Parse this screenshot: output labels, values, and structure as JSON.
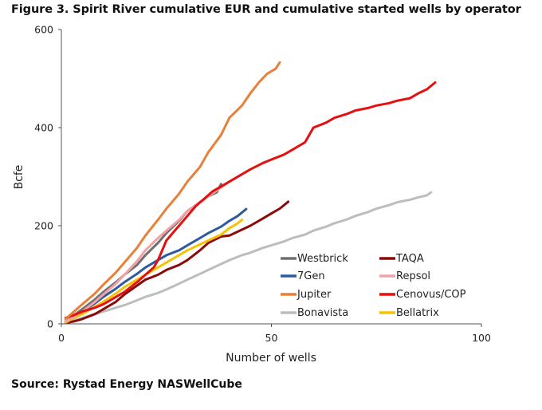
{
  "figure_title": "Figure 3. Spirit River cumulative EUR and cumulative started wells by operator",
  "source": "Source: Rystad Energy NASWellCube",
  "chart_data": {
    "type": "line",
    "title": "Figure 3. Spirit River cumulative EUR and cumulative started wells by operator",
    "xlabel": "Number of wells",
    "ylabel": "Bcfe",
    "xlim": [
      0,
      100
    ],
    "ylim": [
      0,
      600
    ],
    "xticks": [
      "0",
      "50",
      "100"
    ],
    "yticks": [
      "0",
      "200",
      "400",
      "600"
    ],
    "grid": false,
    "legend_position": "bottom-right",
    "series": [
      {
        "name": "Westbrick",
        "color": "#707070",
        "points": [
          [
            1,
            5
          ],
          [
            5,
            30
          ],
          [
            8,
            50
          ],
          [
            10,
            65
          ],
          [
            13,
            85
          ],
          [
            15,
            100
          ],
          [
            18,
            120
          ],
          [
            20,
            140
          ],
          [
            23,
            165
          ],
          [
            25,
            185
          ],
          [
            28,
            210
          ],
          [
            30,
            230
          ],
          [
            33,
            248
          ],
          [
            35,
            260
          ],
          [
            37,
            268
          ],
          [
            38,
            285
          ]
        ]
      },
      {
        "name": "TAQA",
        "color": "#8b0a0a",
        "points": [
          [
            1,
            2
          ],
          [
            3,
            5
          ],
          [
            5,
            10
          ],
          [
            8,
            20
          ],
          [
            10,
            30
          ],
          [
            13,
            45
          ],
          [
            15,
            60
          ],
          [
            18,
            78
          ],
          [
            20,
            90
          ],
          [
            23,
            100
          ],
          [
            25,
            110
          ],
          [
            28,
            120
          ],
          [
            30,
            130
          ],
          [
            33,
            150
          ],
          [
            35,
            165
          ],
          [
            38,
            178
          ],
          [
            40,
            180
          ],
          [
            43,
            192
          ],
          [
            45,
            200
          ],
          [
            48,
            215
          ],
          [
            50,
            225
          ],
          [
            52,
            235
          ],
          [
            54,
            249
          ]
        ]
      },
      {
        "name": "7Gen",
        "color": "#2e5aa0",
        "points": [
          [
            1,
            5
          ],
          [
            3,
            15
          ],
          [
            5,
            25
          ],
          [
            8,
            42
          ],
          [
            10,
            55
          ],
          [
            13,
            72
          ],
          [
            15,
            85
          ],
          [
            18,
            102
          ],
          [
            20,
            115
          ],
          [
            23,
            130
          ],
          [
            25,
            140
          ],
          [
            28,
            150
          ],
          [
            30,
            160
          ],
          [
            33,
            175
          ],
          [
            35,
            185
          ],
          [
            38,
            198
          ],
          [
            40,
            210
          ],
          [
            42,
            220
          ],
          [
            44,
            234
          ]
        ]
      },
      {
        "name": "Repsol",
        "color": "#f2a3a8",
        "points": [
          [
            1,
            5
          ],
          [
            3,
            15
          ],
          [
            5,
            25
          ],
          [
            8,
            45
          ],
          [
            10,
            60
          ],
          [
            13,
            82
          ],
          [
            15,
            100
          ],
          [
            18,
            128
          ],
          [
            20,
            150
          ],
          [
            23,
            175
          ],
          [
            25,
            190
          ],
          [
            28,
            212
          ],
          [
            30,
            230
          ],
          [
            33,
            248
          ],
          [
            35,
            260
          ],
          [
            38,
            278
          ],
          [
            40,
            290
          ],
          [
            43,
            305
          ]
        ]
      },
      {
        "name": "Jupiter",
        "color": "#e8803a",
        "points": [
          [
            1,
            10
          ],
          [
            3,
            25
          ],
          [
            5,
            40
          ],
          [
            8,
            62
          ],
          [
            10,
            80
          ],
          [
            13,
            105
          ],
          [
            15,
            125
          ],
          [
            18,
            155
          ],
          [
            20,
            180
          ],
          [
            23,
            212
          ],
          [
            25,
            235
          ],
          [
            28,
            265
          ],
          [
            30,
            290
          ],
          [
            33,
            320
          ],
          [
            35,
            350
          ],
          [
            38,
            385
          ],
          [
            40,
            420
          ],
          [
            43,
            445
          ],
          [
            45,
            470
          ],
          [
            47,
            492
          ],
          [
            49,
            510
          ],
          [
            51,
            520
          ],
          [
            52,
            533
          ]
        ]
      },
      {
        "name": "Cenovus/COP",
        "color": "#e51010",
        "points": [
          [
            1,
            12
          ],
          [
            3,
            18
          ],
          [
            5,
            25
          ],
          [
            8,
            33
          ],
          [
            10,
            40
          ],
          [
            13,
            55
          ],
          [
            15,
            65
          ],
          [
            18,
            85
          ],
          [
            20,
            100
          ],
          [
            22,
            115
          ],
          [
            23,
            130
          ],
          [
            24,
            150
          ],
          [
            25,
            170
          ],
          [
            27,
            190
          ],
          [
            28,
            200
          ],
          [
            30,
            220
          ],
          [
            32,
            240
          ],
          [
            34,
            255
          ],
          [
            36,
            270
          ],
          [
            38,
            280
          ],
          [
            40,
            290
          ],
          [
            43,
            305
          ],
          [
            45,
            315
          ],
          [
            48,
            328
          ],
          [
            50,
            335
          ],
          [
            53,
            345
          ],
          [
            55,
            355
          ],
          [
            58,
            370
          ],
          [
            60,
            400
          ],
          [
            63,
            410
          ],
          [
            65,
            420
          ],
          [
            68,
            428
          ],
          [
            70,
            435
          ],
          [
            73,
            440
          ],
          [
            75,
            445
          ],
          [
            78,
            450
          ],
          [
            80,
            455
          ],
          [
            83,
            460
          ],
          [
            85,
            470
          ],
          [
            87,
            478
          ],
          [
            89,
            492
          ]
        ]
      },
      {
        "name": "Bonavista",
        "color": "#bdbdbd",
        "points": [
          [
            1,
            2
          ],
          [
            3,
            7
          ],
          [
            5,
            12
          ],
          [
            8,
            20
          ],
          [
            10,
            25
          ],
          [
            13,
            33
          ],
          [
            15,
            38
          ],
          [
            18,
            48
          ],
          [
            20,
            55
          ],
          [
            23,
            63
          ],
          [
            25,
            70
          ],
          [
            28,
            82
          ],
          [
            30,
            90
          ],
          [
            33,
            102
          ],
          [
            35,
            110
          ],
          [
            38,
            122
          ],
          [
            40,
            130
          ],
          [
            43,
            140
          ],
          [
            45,
            145
          ],
          [
            48,
            155
          ],
          [
            50,
            160
          ],
          [
            53,
            168
          ],
          [
            55,
            175
          ],
          [
            58,
            182
          ],
          [
            60,
            190
          ],
          [
            63,
            198
          ],
          [
            65,
            205
          ],
          [
            68,
            213
          ],
          [
            70,
            220
          ],
          [
            73,
            228
          ],
          [
            75,
            235
          ],
          [
            78,
            242
          ],
          [
            80,
            248
          ],
          [
            83,
            253
          ],
          [
            85,
            258
          ],
          [
            87,
            262
          ],
          [
            88,
            268
          ]
        ]
      },
      {
        "name": "Bellatrix",
        "color": "#f5c400",
        "points": [
          [
            1,
            3
          ],
          [
            3,
            12
          ],
          [
            5,
            20
          ],
          [
            8,
            35
          ],
          [
            10,
            45
          ],
          [
            13,
            62
          ],
          [
            15,
            75
          ],
          [
            18,
            90
          ],
          [
            20,
            100
          ],
          [
            23,
            115
          ],
          [
            25,
            125
          ],
          [
            28,
            140
          ],
          [
            30,
            150
          ],
          [
            33,
            162
          ],
          [
            35,
            170
          ],
          [
            38,
            182
          ],
          [
            40,
            195
          ],
          [
            42,
            205
          ],
          [
            43,
            212
          ]
        ]
      }
    ]
  }
}
